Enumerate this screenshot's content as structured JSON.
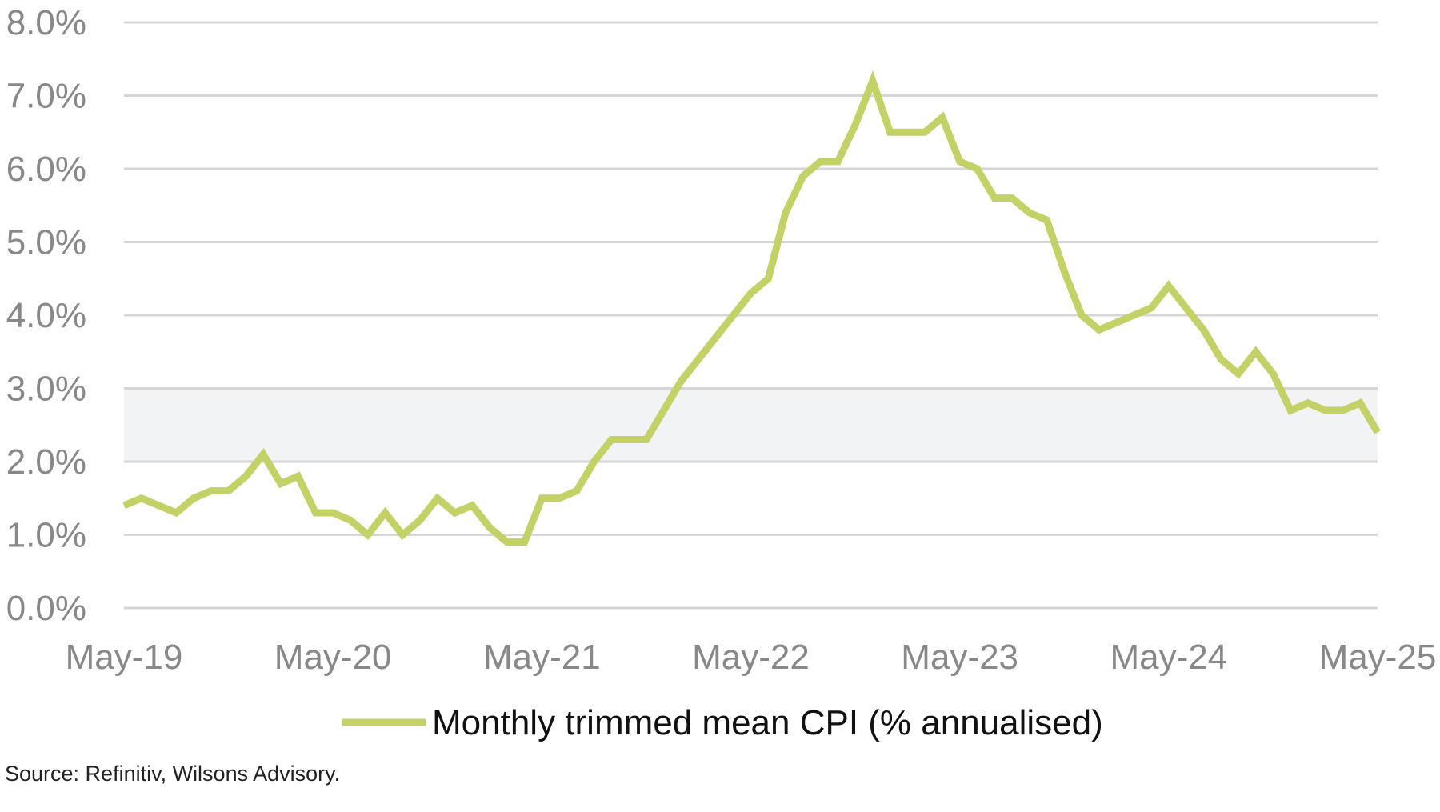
{
  "chart_data": {
    "type": "line",
    "title": "",
    "xlabel": "",
    "ylabel": "",
    "ylim": [
      0,
      8
    ],
    "y_ticks": [
      "0.0%",
      "1.0%",
      "2.0%",
      "3.0%",
      "4.0%",
      "5.0%",
      "6.0%",
      "7.0%",
      "8.0%"
    ],
    "x_ticks": [
      "May-19",
      "May-20",
      "May-21",
      "May-22",
      "May-23",
      "May-24",
      "May-25"
    ],
    "x_range": [
      "2019-05",
      "2025-05"
    ],
    "grid": true,
    "target_band": [
      2,
      3
    ],
    "legend_position": "bottom-center",
    "series": [
      {
        "name": "Monthly trimmed mean CPI (% annualised)",
        "color": "#c3d166",
        "x": [
          "2019-05",
          "2019-06",
          "2019-07",
          "2019-08",
          "2019-09",
          "2019-10",
          "2019-11",
          "2019-12",
          "2020-01",
          "2020-02",
          "2020-03",
          "2020-04",
          "2020-05",
          "2020-06",
          "2020-07",
          "2020-08",
          "2020-09",
          "2020-10",
          "2020-11",
          "2020-12",
          "2021-01",
          "2021-02",
          "2021-03",
          "2021-04",
          "2021-05",
          "2021-06",
          "2021-07",
          "2021-08",
          "2021-09",
          "2021-10",
          "2021-11",
          "2021-12",
          "2022-01",
          "2022-02",
          "2022-03",
          "2022-04",
          "2022-05",
          "2022-06",
          "2022-07",
          "2022-08",
          "2022-09",
          "2022-10",
          "2022-11",
          "2022-12",
          "2023-01",
          "2023-02",
          "2023-03",
          "2023-04",
          "2023-05",
          "2023-06",
          "2023-07",
          "2023-08",
          "2023-09",
          "2023-10",
          "2023-11",
          "2023-12",
          "2024-01",
          "2024-02",
          "2024-03",
          "2024-04",
          "2024-05",
          "2024-06",
          "2024-07",
          "2024-08",
          "2024-09",
          "2024-10",
          "2024-11",
          "2024-12",
          "2025-01",
          "2025-02",
          "2025-03",
          "2025-04",
          "2025-05"
        ],
        "values": [
          1.4,
          1.5,
          1.4,
          1.3,
          1.5,
          1.6,
          1.6,
          1.8,
          2.1,
          1.7,
          1.8,
          1.3,
          1.3,
          1.2,
          1.0,
          1.3,
          1.0,
          1.2,
          1.5,
          1.3,
          1.4,
          1.1,
          0.9,
          0.9,
          1.5,
          1.5,
          1.6,
          2.0,
          2.3,
          2.3,
          2.3,
          2.7,
          3.1,
          3.4,
          3.7,
          4.0,
          4.3,
          4.5,
          5.4,
          5.9,
          6.1,
          6.1,
          6.6,
          7.2,
          6.5,
          6.5,
          6.5,
          6.7,
          6.1,
          6.0,
          5.6,
          5.6,
          5.4,
          5.3,
          4.6,
          4.0,
          3.8,
          3.9,
          4.0,
          4.1,
          4.4,
          4.1,
          3.8,
          3.4,
          3.2,
          3.5,
          3.2,
          2.7,
          2.8,
          2.7,
          2.7,
          2.8,
          2.4
        ]
      }
    ],
    "source": "Source: Refinitiv, Wilsons Advisory."
  }
}
